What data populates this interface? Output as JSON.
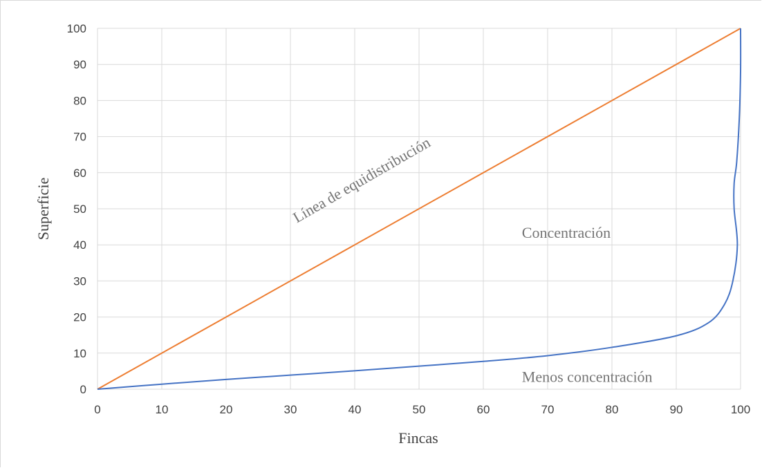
{
  "chart_data": {
    "type": "line",
    "xlabel": "Fincas",
    "ylabel": "Superficie",
    "xlim": [
      0,
      100
    ],
    "ylim": [
      0,
      100
    ],
    "x_ticks": [
      "0",
      "10",
      "20",
      "30",
      "40",
      "50",
      "60",
      "70",
      "80",
      "90",
      "100"
    ],
    "y_ticks": [
      "0",
      "10",
      "20",
      "30",
      "40",
      "50",
      "60",
      "70",
      "80",
      "90",
      "100"
    ],
    "grid": true,
    "legend": "none",
    "series": [
      {
        "color": "#ED7D31",
        "points": [
          [
            0,
            0
          ],
          [
            100,
            100
          ]
        ]
      },
      {
        "color": "#4472C4",
        "points": [
          [
            0,
            0
          ],
          [
            10,
            1.4
          ],
          [
            20,
            2.7
          ],
          [
            30,
            3.9
          ],
          [
            40,
            5.1
          ],
          [
            50,
            6.4
          ],
          [
            60,
            7.7
          ],
          [
            70,
            9.3
          ],
          [
            80,
            11.6
          ],
          [
            90,
            14.8
          ],
          [
            95,
            18.4
          ],
          [
            97.5,
            23.5
          ],
          [
            98.8,
            30
          ],
          [
            99.5,
            40
          ],
          [
            99,
            50
          ],
          [
            99,
            57
          ],
          [
            99.4,
            63
          ],
          [
            99.8,
            75
          ],
          [
            100,
            88
          ],
          [
            100,
            100
          ]
        ]
      }
    ],
    "annotations": [
      {
        "text": "Línea de equidistribución",
        "x": 31,
        "y": 46,
        "rotation": -30
      },
      {
        "text": "Concentración",
        "x": 66,
        "y": 42
      },
      {
        "text": "Menos concentración",
        "x": 66,
        "y": 2
      }
    ]
  }
}
